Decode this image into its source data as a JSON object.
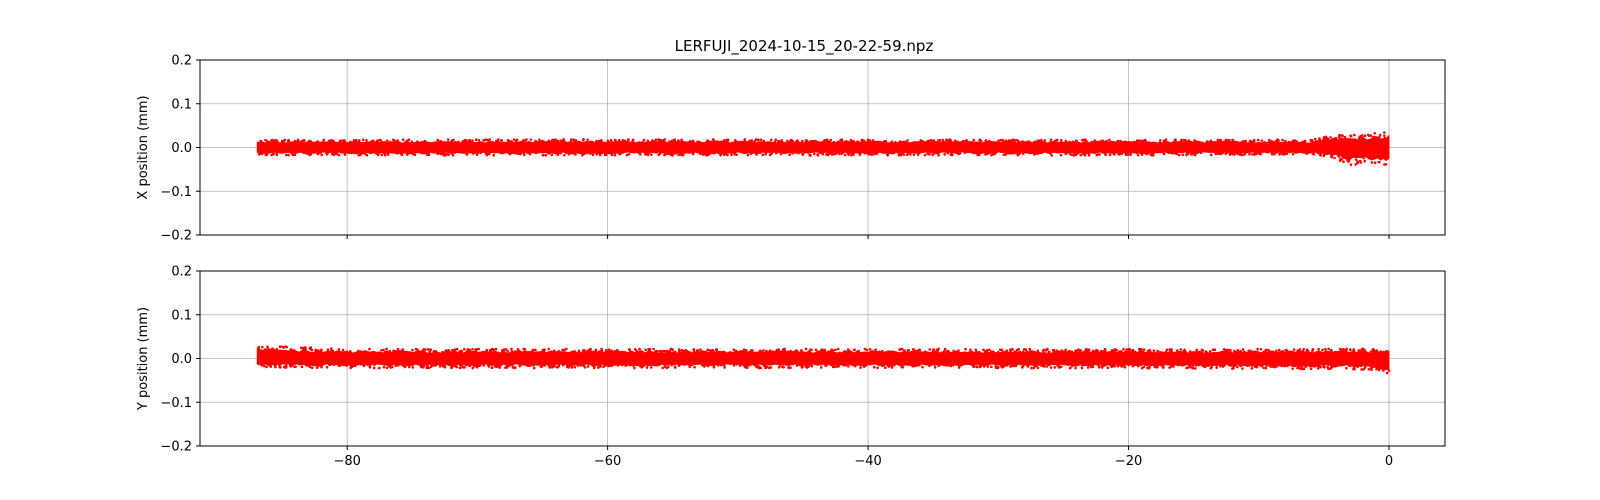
{
  "figure": {
    "title": "LERFUJI_2024-10-15_20-22-59.npz"
  },
  "chart_data": [
    {
      "type": "scatter",
      "panel": "top",
      "ylabel": "X position (mm)",
      "xlabel": "",
      "xlim": [
        -91.3,
        4.3
      ],
      "ylim": [
        -0.2,
        0.2
      ],
      "xticks": [
        -80,
        -60,
        -40,
        -20,
        0
      ],
      "xtick_labels": [],
      "yticks": [
        -0.2,
        -0.1,
        0.0,
        0.1,
        0.2
      ],
      "ytick_labels": [
        "−0.2",
        "−0.1",
        "0.0",
        "0.1",
        "0.2"
      ],
      "grid": true,
      "color": "#ff0000",
      "series": [
        {
          "x_range": [
            -86.9,
            0.0
          ],
          "band": [
            {
              "x": -86.9,
              "low": -0.017,
              "high": 0.017
            },
            {
              "x": -80.0,
              "low": -0.018,
              "high": 0.018
            },
            {
              "x": -60.0,
              "low": -0.018,
              "high": 0.019
            },
            {
              "x": -40.0,
              "low": -0.018,
              "high": 0.018
            },
            {
              "x": -20.0,
              "low": -0.018,
              "high": 0.018
            },
            {
              "x": -6.0,
              "low": -0.017,
              "high": 0.018
            },
            {
              "x": -4.5,
              "low": -0.022,
              "high": 0.03
            },
            {
              "x": -3.0,
              "low": -0.04,
              "high": 0.028
            },
            {
              "x": -1.5,
              "low": -0.038,
              "high": 0.032
            },
            {
              "x": 0.0,
              "low": -0.04,
              "high": 0.035
            }
          ]
        }
      ]
    },
    {
      "type": "scatter",
      "panel": "bottom",
      "ylabel": "Y position (mm)",
      "xlabel": "",
      "xlim": [
        -91.3,
        4.3
      ],
      "ylim": [
        -0.2,
        0.2
      ],
      "xticks": [
        -80,
        -60,
        -40,
        -20,
        0
      ],
      "xtick_labels": [
        "−80",
        "−60",
        "−40",
        "−20",
        "0"
      ],
      "yticks": [
        -0.2,
        -0.1,
        0.0,
        0.1,
        0.2
      ],
      "ytick_labels": [
        "−0.2",
        "−0.1",
        "0.0",
        "0.1",
        "0.2"
      ],
      "grid": true,
      "color": "#ff0000",
      "series": [
        {
          "x_range": [
            -86.9,
            0.0
          ],
          "band": [
            {
              "x": -86.9,
              "low": -0.02,
              "high": 0.03
            },
            {
              "x": -80.0,
              "low": -0.022,
              "high": 0.022
            },
            {
              "x": -60.0,
              "low": -0.022,
              "high": 0.022
            },
            {
              "x": -40.0,
              "low": -0.022,
              "high": 0.022
            },
            {
              "x": -20.0,
              "low": -0.022,
              "high": 0.022
            },
            {
              "x": -2.0,
              "low": -0.025,
              "high": 0.022
            },
            {
              "x": 0.0,
              "low": -0.035,
              "high": 0.02
            }
          ]
        }
      ]
    }
  ]
}
